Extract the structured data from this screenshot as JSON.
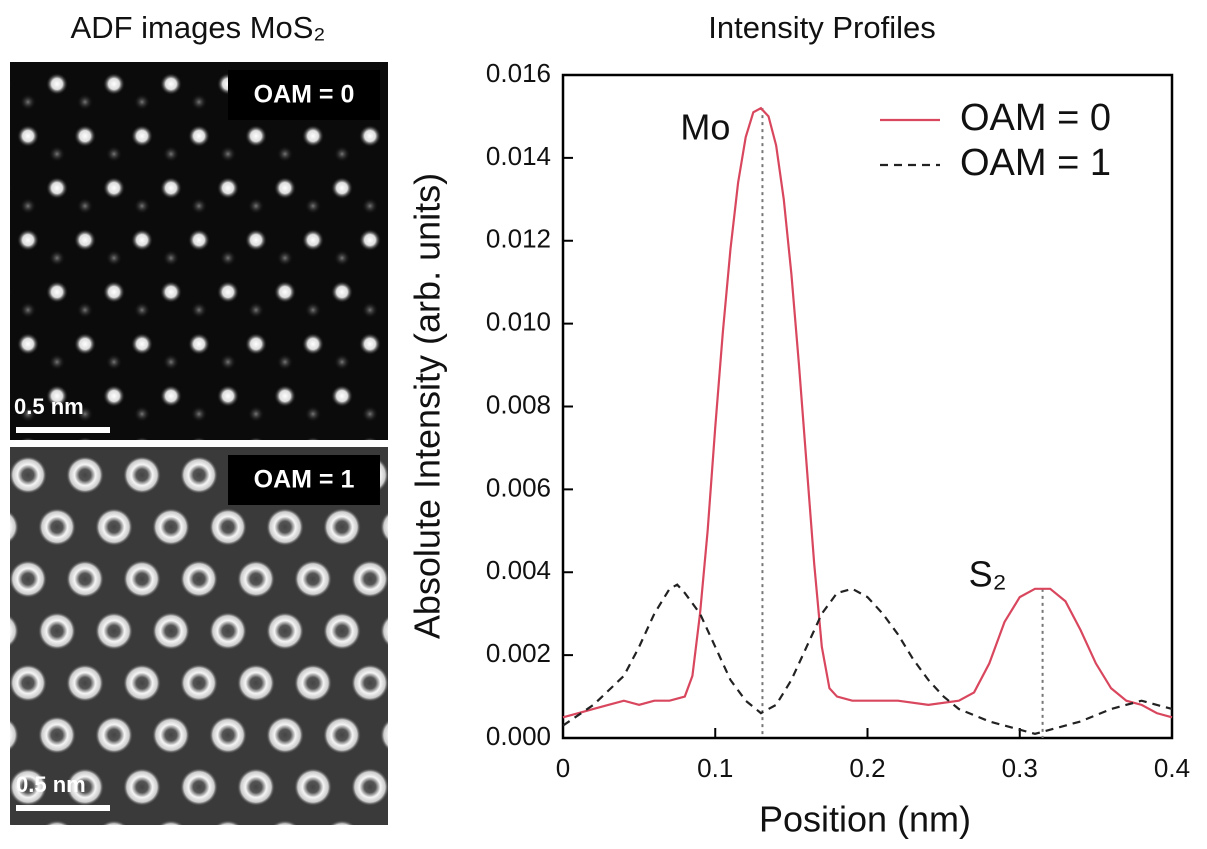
{
  "panels": {
    "title": "ADF images MoS₂",
    "images": [
      {
        "label": "OAM = 0",
        "scale": "0.5 nm"
      },
      {
        "label": "OAM = 1",
        "scale": "0.5 nm"
      }
    ]
  },
  "chart_data": {
    "type": "line",
    "title": "Intensity Profiles",
    "x_label": "Position (nm)",
    "y_label": "Absolute Intensity (arb. units)",
    "xlim": [
      0,
      0.4
    ],
    "xticks": [
      0,
      0.1,
      0.2,
      0.3,
      0.4
    ],
    "ylim": [
      0,
      0.016
    ],
    "yticks": [
      {
        "value": 0,
        "label": "0.000"
      },
      0.002,
      0.004,
      0.006,
      0.008,
      {
        "value": 0.01,
        "label": "0.010"
      },
      0.012,
      0.014,
      0.016
    ],
    "legend": "upper right",
    "annotations": [
      {
        "text": "Mo",
        "x": 0.131,
        "y": 0.0152
      },
      {
        "text": "S₂",
        "x": 0.315,
        "y": 0.0036
      }
    ],
    "series": [
      {
        "name": "OAM = 0",
        "color": "#d9475e",
        "linestyle": "solid",
        "x": [
          0,
          0.01,
          0.02,
          0.03,
          0.04,
          0.05,
          0.06,
          0.07,
          0.08,
          0.085,
          0.09,
          0.095,
          0.1,
          0.105,
          0.11,
          0.115,
          0.12,
          0.125,
          0.13,
          0.135,
          0.14,
          0.145,
          0.15,
          0.155,
          0.16,
          0.165,
          0.17,
          0.175,
          0.18,
          0.19,
          0.2,
          0.22,
          0.24,
          0.26,
          0.27,
          0.28,
          0.29,
          0.3,
          0.31,
          0.32,
          0.33,
          0.34,
          0.35,
          0.36,
          0.37,
          0.38,
          0.39,
          0.4
        ],
        "values": [
          0.0005,
          0.0006,
          0.0007,
          0.0008,
          0.0009,
          0.0008,
          0.0009,
          0.0009,
          0.001,
          0.0015,
          0.003,
          0.005,
          0.0075,
          0.0098,
          0.0118,
          0.0134,
          0.0145,
          0.0151,
          0.0152,
          0.015,
          0.0143,
          0.013,
          0.0112,
          0.009,
          0.0066,
          0.0042,
          0.0022,
          0.0012,
          0.001,
          0.0009,
          0.0009,
          0.0009,
          0.0008,
          0.0009,
          0.0011,
          0.0018,
          0.0028,
          0.0034,
          0.0036,
          0.0036,
          0.0033,
          0.0026,
          0.0018,
          0.0012,
          0.0009,
          0.0008,
          0.0006,
          0.0005
        ]
      },
      {
        "name": "OAM = 1",
        "color": "#222222",
        "linestyle": "dashed",
        "x": [
          0,
          0.02,
          0.04,
          0.05,
          0.06,
          0.07,
          0.075,
          0.08,
          0.09,
          0.1,
          0.11,
          0.12,
          0.13,
          0.14,
          0.15,
          0.16,
          0.17,
          0.18,
          0.19,
          0.2,
          0.21,
          0.22,
          0.23,
          0.24,
          0.25,
          0.26,
          0.28,
          0.3,
          0.31,
          0.32,
          0.34,
          0.36,
          0.38,
          0.4
        ],
        "values": [
          0.0003,
          0.0008,
          0.0015,
          0.0022,
          0.003,
          0.0036,
          0.0037,
          0.0035,
          0.003,
          0.0022,
          0.0014,
          0.0009,
          0.0006,
          0.0008,
          0.0014,
          0.0022,
          0.003,
          0.0035,
          0.0036,
          0.0034,
          0.003,
          0.0025,
          0.0019,
          0.0014,
          0.001,
          0.0007,
          0.0004,
          0.0002,
          0.0001,
          0.0002,
          0.0004,
          0.0007,
          0.0009,
          0.0007
        ]
      }
    ]
  }
}
